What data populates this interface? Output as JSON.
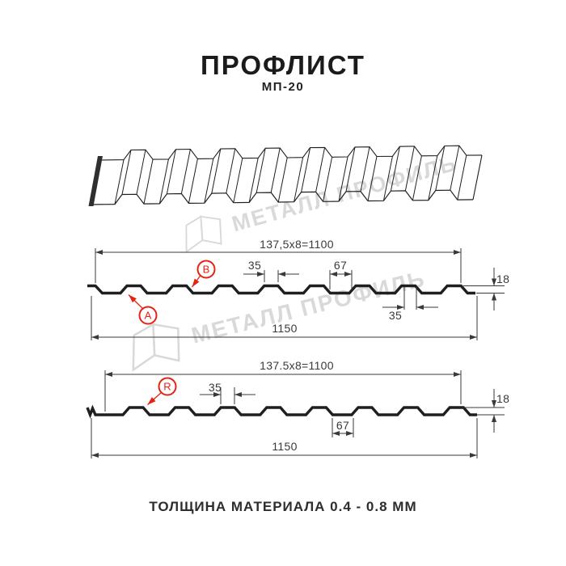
{
  "header": {
    "title": "ПРОФЛИСТ",
    "subtitle": "МП-20"
  },
  "footer": {
    "note": "ТОЛЩИНА МАТЕРИАЛА 0.4 - 0.8 ММ"
  },
  "watermark": {
    "text": "МЕТАЛЛ ПРОФИЛЬ"
  },
  "profile_a": {
    "label_a": "A",
    "label_b": "B",
    "dim_span": "137,5x8=1100",
    "dim_rib_top": "35",
    "dim_valley": "67",
    "dim_height": "18",
    "dim_overlap": "35",
    "dim_total": "1150"
  },
  "profile_r": {
    "label_r": "R",
    "dim_span": "137.5x8=1100",
    "dim_rib_top": "35",
    "dim_valley": "67",
    "dim_height": "18",
    "dim_total": "1150"
  },
  "colors": {
    "line": "#1f1f1f",
    "dim": "#3a3a3a",
    "accent_red": "#e42313",
    "watermark": "#d9d9d9",
    "cut_edge": "#2f2f2f"
  }
}
